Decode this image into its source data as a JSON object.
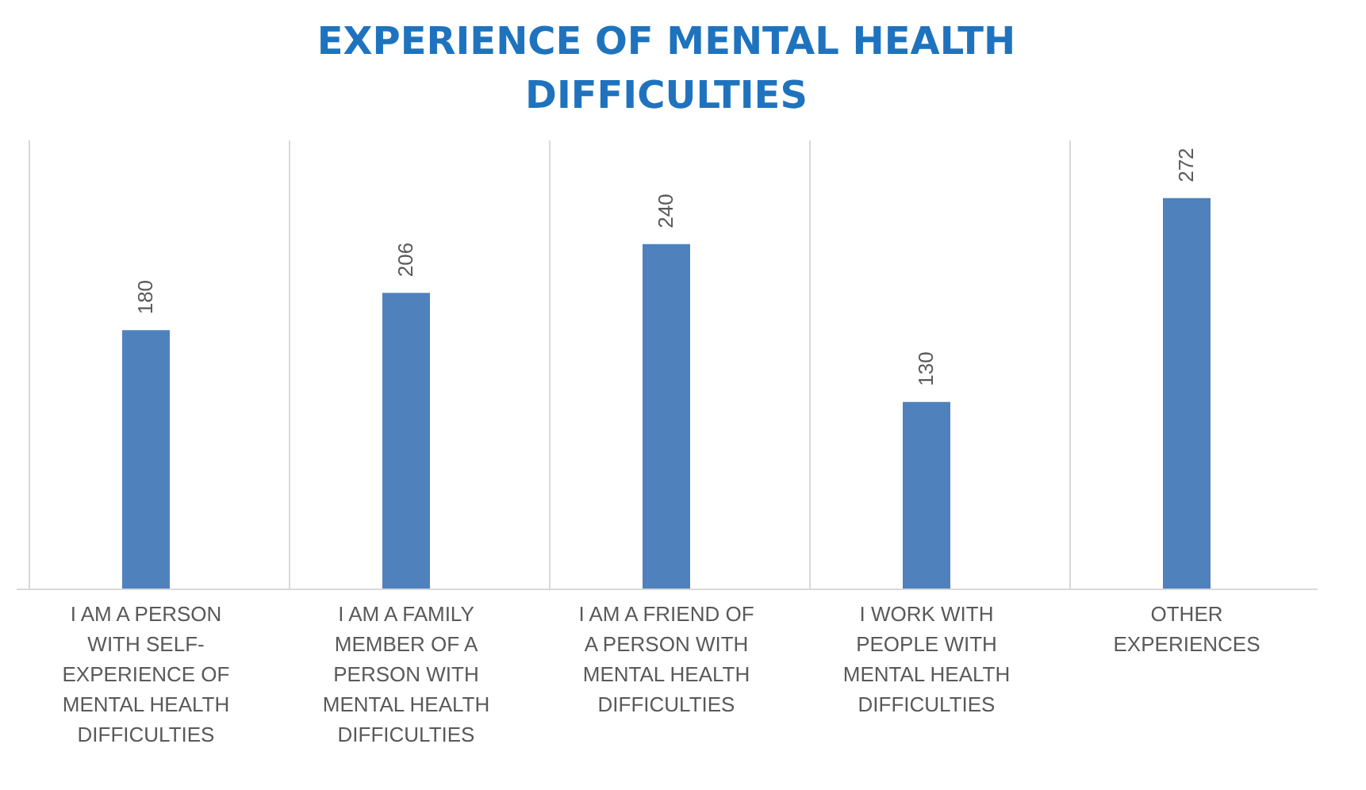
{
  "chart_data": {
    "type": "bar",
    "title": "EXPERIENCE OF MENTAL HEALTH DIFFICULTIES",
    "categories": [
      "I AM A PERSON WITH SELF-EXPERIENCE OF MENTAL HEALTH DIFFICULTIES",
      "I AM A FAMILY MEMBER OF A PERSON WITH MENTAL HEALTH DIFFICULTIES",
      "I AM A FRIEND OF A PERSON WITH MENTAL HEALTH DIFFICULTIES",
      "I WORK WITH PEOPLE WITH MENTAL HEALTH DIFFICULTIES",
      "OTHER EXPERIENCES"
    ],
    "values": [
      180,
      206,
      240,
      130,
      272
    ],
    "color": "#4f81bd",
    "data_labels": true,
    "grid": "x"
  }
}
